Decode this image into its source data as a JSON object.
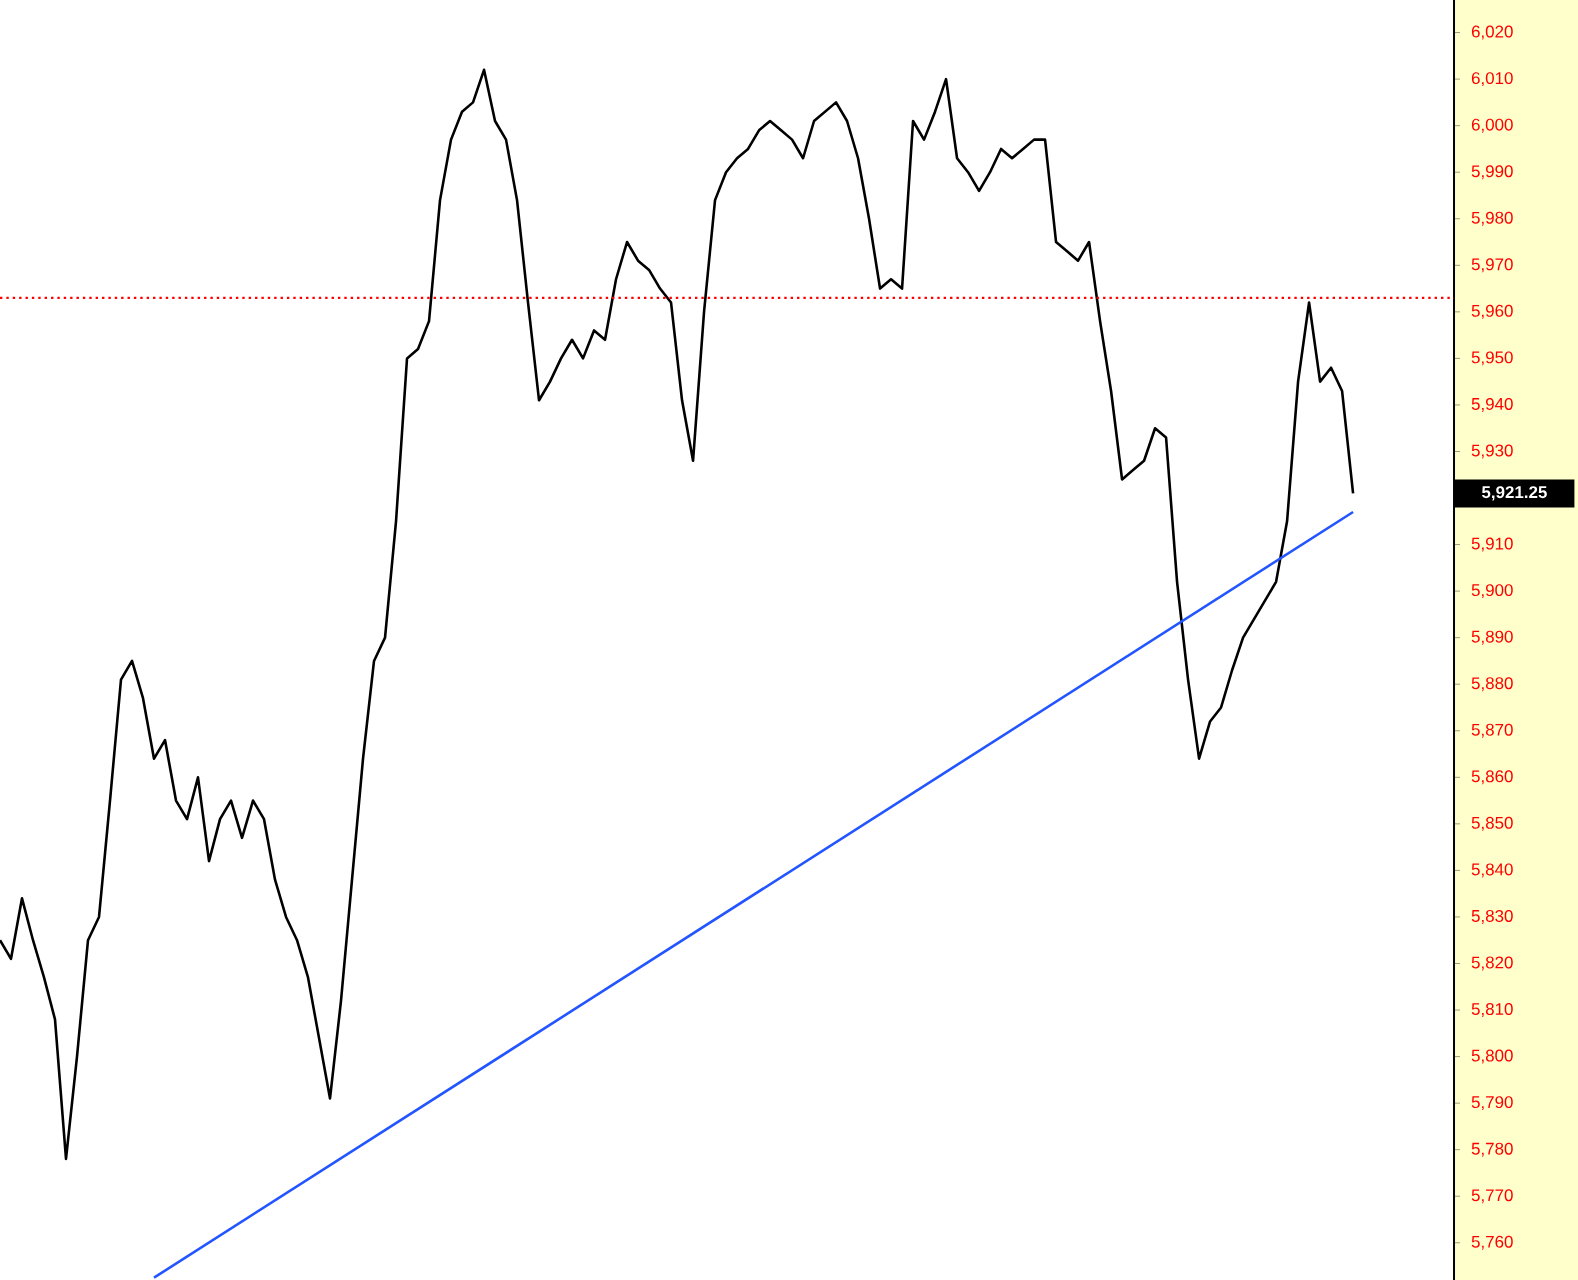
{
  "chart_data": {
    "type": "line",
    "tick_labels": "y",
    "grid": false,
    "marker": "none",
    "line_style": "solid",
    "categories": [
      null,
      null,
      null,
      null,
      null,
      null,
      null,
      null,
      null,
      null,
      null,
      null,
      null,
      null,
      null,
      null,
      null,
      null,
      null,
      null,
      null,
      null,
      null,
      null,
      null,
      null,
      null,
      null,
      null,
      null,
      null,
      null,
      null,
      null,
      null,
      null,
      null,
      null,
      null,
      null,
      null,
      null,
      null,
      null,
      null,
      null,
      null,
      null,
      null,
      null,
      null,
      null,
      null,
      null,
      null,
      null,
      null,
      null,
      null,
      null,
      null,
      null,
      null,
      null,
      null,
      null,
      null,
      null,
      null,
      null,
      null,
      null,
      null,
      null,
      null,
      null,
      null,
      null,
      null,
      null,
      null,
      null,
      null,
      null,
      null,
      null,
      null,
      null,
      null,
      null,
      null,
      null,
      null,
      null,
      null,
      null,
      null,
      null,
      null,
      null,
      null,
      null,
      null,
      null,
      null,
      null,
      null,
      null,
      null,
      null,
      null,
      null,
      null,
      null,
      null,
      null,
      null,
      null,
      null,
      null,
      null,
      null,
      null,
      null
    ],
    "series": [
      {
        "color": "#000000",
        "values": [
          5825,
          5821,
          5834,
          5825,
          5817,
          5808,
          5778,
          5800,
          5825,
          5830,
          5855,
          5881,
          5885,
          5877,
          5864,
          5868,
          5855,
          5851,
          5860,
          5842,
          5851,
          5855,
          5847,
          5855,
          5851,
          5838,
          5830,
          5825,
          5817,
          5804,
          5791,
          5812,
          5838,
          5864,
          5885,
          5890,
          5915,
          5950,
          5952,
          5958,
          5984,
          5997,
          6003,
          6005,
          6012,
          6001,
          5997,
          5984,
          5962,
          5941,
          5945,
          5950,
          5954,
          5950,
          5956,
          5954,
          5967,
          5975,
          5971,
          5969,
          5965,
          5962,
          5941,
          5928,
          5960,
          5984,
          5990,
          5993,
          5995,
          5999,
          6001,
          5999,
          5997,
          5993,
          6001,
          6003,
          6005,
          6001,
          5993,
          5980,
          5965,
          5967,
          5965,
          6001,
          5997,
          6003,
          6010,
          5993,
          5990,
          5986,
          5990,
          5995,
          5993,
          5995,
          5997,
          5997,
          5975,
          5973,
          5971,
          5975,
          5958,
          5943,
          5924,
          5926,
          5928,
          5935,
          5933,
          5902,
          5881,
          5864,
          5872,
          5875,
          5883,
          5890,
          5894,
          5898,
          5902,
          5915,
          5945,
          5962,
          5945,
          5948,
          5943,
          5921
        ]
      },
      {
        "type": "line",
        "color": "#2255ff",
        "values": [
          null,
          null,
          null,
          null,
          null,
          null,
          null,
          null,
          null,
          null,
          null,
          null,
          null,
          null,
          5752.5,
          null,
          null,
          null,
          null,
          null,
          null,
          null,
          null,
          null,
          null,
          null,
          null,
          null,
          null,
          null,
          null,
          null,
          null,
          null,
          null,
          null,
          null,
          null,
          null,
          null,
          null,
          null,
          null,
          null,
          null,
          null,
          null,
          null,
          null,
          null,
          null,
          null,
          null,
          null,
          null,
          null,
          null,
          null,
          null,
          null,
          null,
          null,
          null,
          null,
          null,
          null,
          null,
          null,
          null,
          null,
          null,
          null,
          null,
          null,
          null,
          null,
          null,
          null,
          null,
          null,
          null,
          null,
          null,
          null,
          null,
          null,
          null,
          null,
          null,
          null,
          null,
          null,
          null,
          null,
          null,
          null,
          null,
          null,
          null,
          null,
          null,
          null,
          null,
          null,
          null,
          null,
          null,
          null,
          null,
          null,
          null,
          null,
          null,
          null,
          null,
          null,
          null,
          null,
          null,
          null,
          null,
          null,
          null,
          5917
        ]
      }
    ],
    "ylim": [
      5752,
      6027
    ],
    "yticks": [
      {
        "value": 5760,
        "label": "5,760"
      },
      {
        "value": 5770,
        "label": "5,770"
      },
      {
        "value": 5780,
        "label": "5,780"
      },
      {
        "value": 5790,
        "label": "5,790"
      },
      {
        "value": 5800,
        "label": "5,800"
      },
      {
        "value": 5810,
        "label": "5,810"
      },
      {
        "value": 5820,
        "label": "5,820"
      },
      {
        "value": 5830,
        "label": "5,830"
      },
      {
        "value": 5840,
        "label": "5,840"
      },
      {
        "value": 5850,
        "label": "5,850"
      },
      {
        "value": 5860,
        "label": "5,860"
      },
      {
        "value": 5870,
        "label": "5,870"
      },
      {
        "value": 5880,
        "label": "5,880"
      },
      {
        "value": 5890,
        "label": "5,890"
      },
      {
        "value": 5900,
        "label": "5,900"
      },
      {
        "value": 5910,
        "label": "5,910"
      },
      {
        "value": 5930,
        "label": "5,930"
      },
      {
        "value": 5940,
        "label": "5,940"
      },
      {
        "value": 5950,
        "label": "5,950"
      },
      {
        "value": 5960,
        "label": "5,960"
      },
      {
        "value": 5970,
        "label": "5,970"
      },
      {
        "value": 5980,
        "label": "5,980"
      },
      {
        "value": 5990,
        "label": "5,990"
      },
      {
        "value": 6000,
        "label": "6,000"
      },
      {
        "value": 6010,
        "label": "6,010"
      },
      {
        "value": 6020,
        "label": "6,020"
      }
    ],
    "ref_lines": [
      {
        "axis": "y",
        "value": 5963,
        "color": "#ff0000",
        "line_style": "dotted"
      }
    ],
    "annotations": [
      "5,921.25"
    ]
  }
}
